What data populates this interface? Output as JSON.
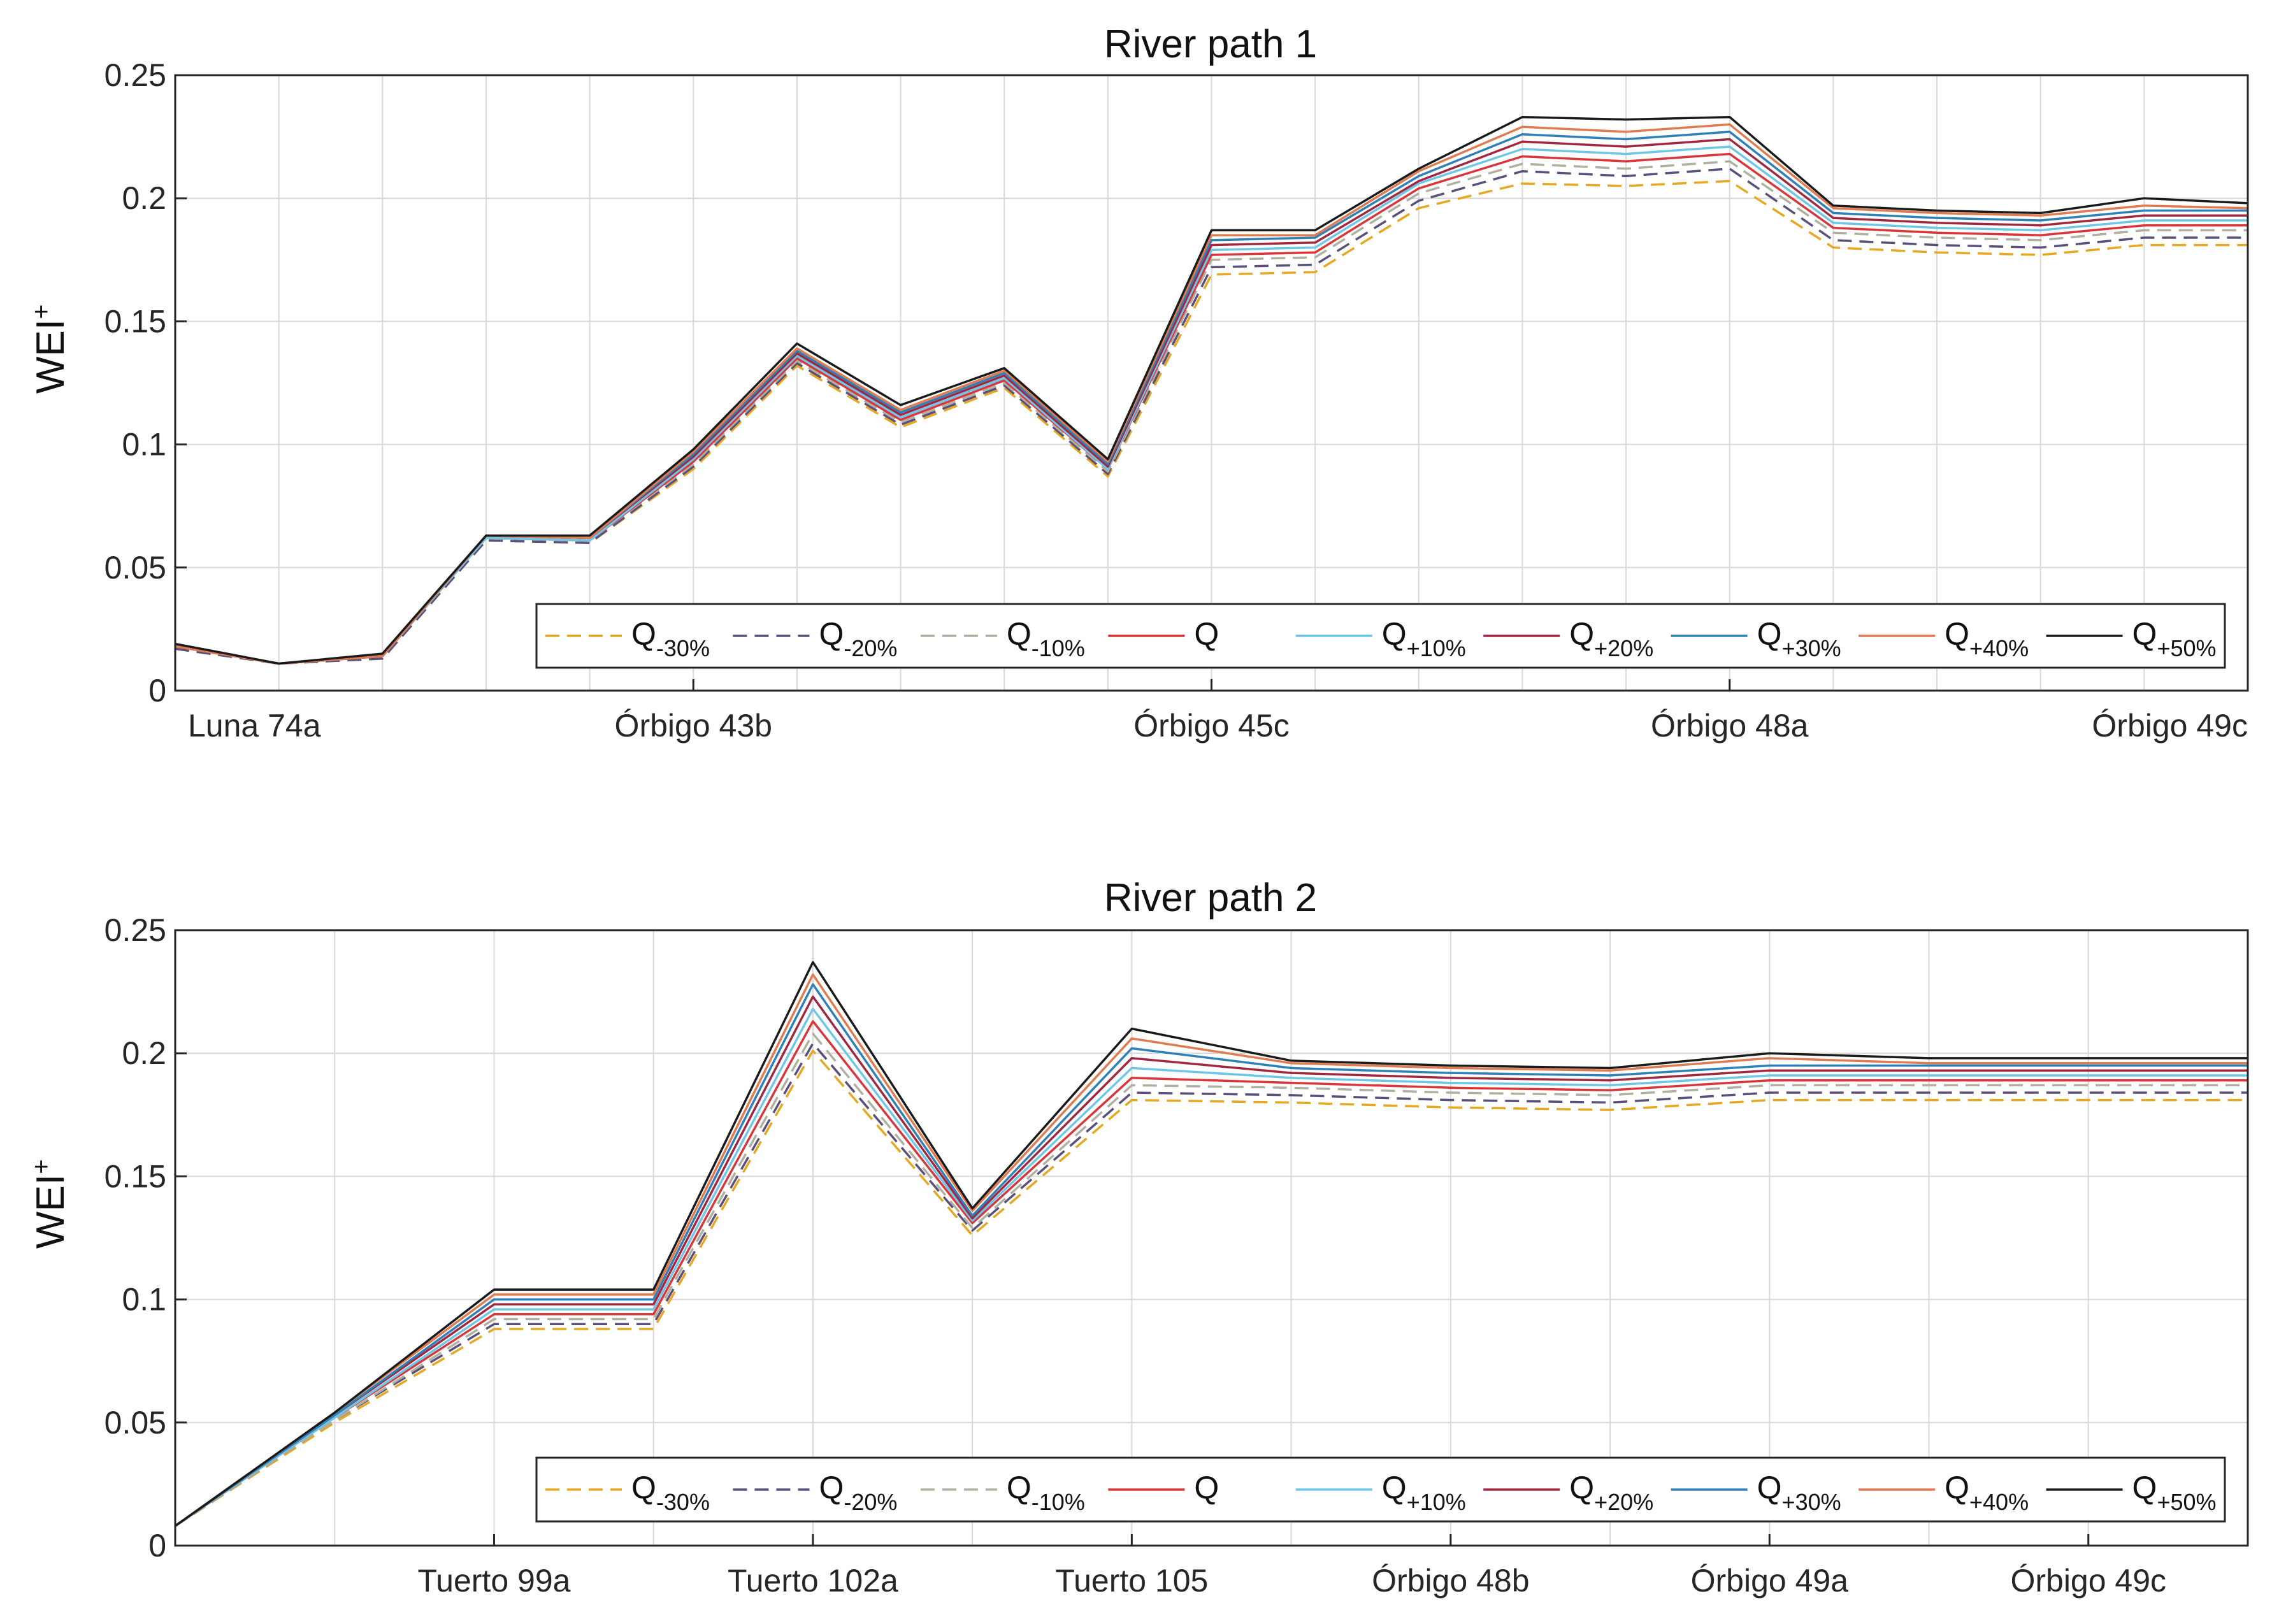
{
  "series_meta": [
    {
      "name": "Q",
      "sub": "-30%",
      "color": "#e6a823",
      "dash": "dashed"
    },
    {
      "name": "Q",
      "sub": "-20%",
      "color": "#5a4f7a",
      "dash": "dashed"
    },
    {
      "name": "Q",
      "sub": "-10%",
      "color": "#b0b0a0",
      "dash": "dashed"
    },
    {
      "name": "Q",
      "sub": "",
      "color": "#d9353a",
      "dash": "solid"
    },
    {
      "name": "Q",
      "sub": "+10%",
      "color": "#6fc6e6",
      "dash": "solid"
    },
    {
      "name": "Q",
      "sub": "+20%",
      "color": "#a2263f",
      "dash": "solid"
    },
    {
      "name": "Q",
      "sub": "+30%",
      "color": "#2f80b8",
      "dash": "solid"
    },
    {
      "name": "Q",
      "sub": "+40%",
      "color": "#e07a50",
      "dash": "solid"
    },
    {
      "name": "Q",
      "sub": "+50%",
      "color": "#1a1a1a",
      "dash": "solid"
    }
  ],
  "chart_data": [
    {
      "type": "line",
      "title": "River path 1",
      "ylabel": "WEI",
      "ylabel_sup": "+",
      "ylim": [
        0,
        0.25
      ],
      "yticks": [
        "0",
        "0.05",
        "0.1",
        "0.15",
        "0.2",
        "0.25"
      ],
      "grid": true,
      "legend_position": "bottom, inside plot",
      "x_tick_labels": [
        {
          "index": 1,
          "label": "Luna 74a"
        },
        {
          "index": 6,
          "label": "Órbigo 43b"
        },
        {
          "index": 11,
          "label": "Órbigo 45c"
        },
        {
          "index": 16,
          "label": "Órbigo 48a"
        },
        {
          "index": 21,
          "label": "Órbigo 49c"
        }
      ],
      "x": [
        1,
        2,
        3,
        4,
        5,
        6,
        7,
        8,
        9,
        10,
        11,
        12,
        13,
        14,
        15,
        16,
        17,
        18,
        19,
        20,
        21
      ],
      "series": [
        {
          "name": "Q-30%",
          "values": [
            0.017,
            0.011,
            0.013,
            0.061,
            0.06,
            0.09,
            0.132,
            0.107,
            0.123,
            0.087,
            0.169,
            0.17,
            0.196,
            0.206,
            0.205,
            0.207,
            0.18,
            0.178,
            0.177,
            0.181,
            0.181
          ]
        },
        {
          "name": "Q-20%",
          "values": [
            0.017,
            0.011,
            0.013,
            0.061,
            0.06,
            0.091,
            0.133,
            0.108,
            0.124,
            0.088,
            0.172,
            0.173,
            0.199,
            0.211,
            0.209,
            0.212,
            0.183,
            0.181,
            0.18,
            0.184,
            0.184
          ]
        },
        {
          "name": "Q-10%",
          "values": [
            0.018,
            0.011,
            0.014,
            0.062,
            0.061,
            0.092,
            0.134,
            0.109,
            0.125,
            0.089,
            0.175,
            0.176,
            0.202,
            0.214,
            0.212,
            0.215,
            0.186,
            0.184,
            0.183,
            0.187,
            0.187
          ]
        },
        {
          "name": "Q",
          "values": [
            0.018,
            0.011,
            0.014,
            0.062,
            0.061,
            0.093,
            0.135,
            0.11,
            0.126,
            0.09,
            0.177,
            0.178,
            0.204,
            0.217,
            0.215,
            0.218,
            0.188,
            0.186,
            0.185,
            0.189,
            0.189
          ]
        },
        {
          "name": "Q+10%",
          "values": [
            0.018,
            0.011,
            0.014,
            0.062,
            0.061,
            0.094,
            0.136,
            0.111,
            0.127,
            0.09,
            0.179,
            0.18,
            0.206,
            0.22,
            0.218,
            0.221,
            0.19,
            0.188,
            0.187,
            0.191,
            0.191
          ]
        },
        {
          "name": "Q+20%",
          "values": [
            0.018,
            0.011,
            0.014,
            0.063,
            0.062,
            0.095,
            0.137,
            0.112,
            0.128,
            0.091,
            0.181,
            0.182,
            0.207,
            0.223,
            0.221,
            0.224,
            0.192,
            0.19,
            0.189,
            0.193,
            0.193
          ]
        },
        {
          "name": "Q+30%",
          "values": [
            0.018,
            0.011,
            0.014,
            0.063,
            0.062,
            0.096,
            0.138,
            0.113,
            0.129,
            0.092,
            0.183,
            0.184,
            0.209,
            0.226,
            0.224,
            0.227,
            0.194,
            0.192,
            0.191,
            0.195,
            0.195
          ]
        },
        {
          "name": "Q+40%",
          "values": [
            0.018,
            0.011,
            0.014,
            0.063,
            0.062,
            0.097,
            0.139,
            0.114,
            0.13,
            0.093,
            0.185,
            0.185,
            0.211,
            0.229,
            0.227,
            0.23,
            0.196,
            0.194,
            0.193,
            0.197,
            0.196
          ]
        },
        {
          "name": "Q+50%",
          "values": [
            0.019,
            0.011,
            0.015,
            0.063,
            0.063,
            0.098,
            0.141,
            0.116,
            0.131,
            0.094,
            0.187,
            0.187,
            0.212,
            0.233,
            0.232,
            0.233,
            0.197,
            0.195,
            0.194,
            0.2,
            0.198
          ]
        }
      ]
    },
    {
      "type": "line",
      "title": "River path 2",
      "ylabel": "WEI",
      "ylabel_sup": "+",
      "ylim": [
        0,
        0.25
      ],
      "yticks": [
        "0",
        "0.05",
        "0.1",
        "0.15",
        "0.2",
        "0.25"
      ],
      "grid": true,
      "legend_position": "bottom, inside plot",
      "x_tick_labels": [
        {
          "index": 3,
          "label": "Tuerto 99a"
        },
        {
          "index": 5,
          "label": "Tuerto 102a"
        },
        {
          "index": 7,
          "label": "Tuerto 105"
        },
        {
          "index": 9,
          "label": "Órbigo 48b"
        },
        {
          "index": 11,
          "label": "Órbigo 49a"
        },
        {
          "index": 13,
          "label": "Órbigo 49c"
        }
      ],
      "x": [
        1,
        2,
        3,
        4,
        5,
        6,
        7,
        8,
        9,
        10,
        11,
        12,
        13,
        14
      ],
      "series": [
        {
          "name": "Q-30%",
          "values": [
            0.008,
            0.05,
            0.088,
            0.088,
            0.201,
            0.126,
            0.181,
            0.18,
            0.178,
            0.177,
            0.181,
            0.181,
            0.181,
            0.181
          ]
        },
        {
          "name": "Q-20%",
          "values": [
            0.008,
            0.051,
            0.09,
            0.09,
            0.204,
            0.128,
            0.184,
            0.183,
            0.181,
            0.18,
            0.184,
            0.184,
            0.184,
            0.184
          ]
        },
        {
          "name": "Q-10%",
          "values": [
            0.008,
            0.051,
            0.092,
            0.092,
            0.208,
            0.129,
            0.187,
            0.186,
            0.184,
            0.183,
            0.187,
            0.187,
            0.187,
            0.187
          ]
        },
        {
          "name": "Q",
          "values": [
            0.008,
            0.052,
            0.094,
            0.094,
            0.213,
            0.131,
            0.19,
            0.188,
            0.186,
            0.185,
            0.189,
            0.189,
            0.189,
            0.189
          ]
        },
        {
          "name": "Q+10%",
          "values": [
            0.008,
            0.052,
            0.096,
            0.096,
            0.218,
            0.132,
            0.194,
            0.19,
            0.188,
            0.187,
            0.191,
            0.191,
            0.191,
            0.191
          ]
        },
        {
          "name": "Q+20%",
          "values": [
            0.008,
            0.053,
            0.098,
            0.098,
            0.223,
            0.133,
            0.198,
            0.192,
            0.19,
            0.189,
            0.193,
            0.193,
            0.193,
            0.193
          ]
        },
        {
          "name": "Q+30%",
          "values": [
            0.008,
            0.053,
            0.1,
            0.1,
            0.228,
            0.134,
            0.202,
            0.194,
            0.192,
            0.191,
            0.195,
            0.195,
            0.195,
            0.195
          ]
        },
        {
          "name": "Q+40%",
          "values": [
            0.008,
            0.054,
            0.102,
            0.102,
            0.232,
            0.136,
            0.206,
            0.196,
            0.194,
            0.193,
            0.198,
            0.196,
            0.196,
            0.196
          ]
        },
        {
          "name": "Q+50%",
          "values": [
            0.008,
            0.054,
            0.104,
            0.104,
            0.237,
            0.137,
            0.21,
            0.197,
            0.195,
            0.194,
            0.2,
            0.198,
            0.198,
            0.198
          ]
        }
      ]
    }
  ]
}
